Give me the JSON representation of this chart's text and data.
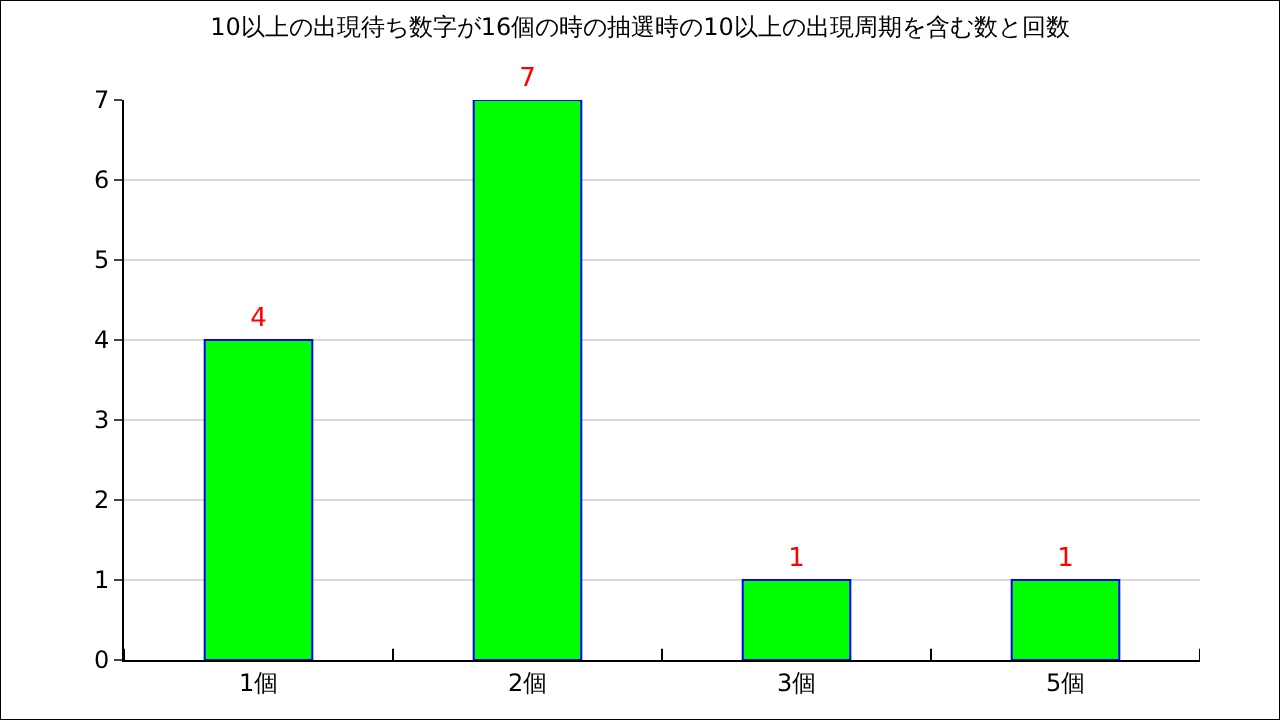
{
  "chart_data": {
    "type": "bar",
    "title": "10以上の出現待ち数字が16個の時の抽選時の10以上の出現周期を含む数と回数",
    "categories": [
      "1個",
      "2個",
      "3個",
      "5個"
    ],
    "values": [
      4,
      7,
      1,
      1
    ],
    "color": "#00ff00",
    "ylim": [
      0,
      7
    ],
    "yticks": [
      0,
      1,
      2,
      3,
      4,
      5,
      6,
      7
    ],
    "grid": "y",
    "data_labels": true,
    "legend": false
  }
}
